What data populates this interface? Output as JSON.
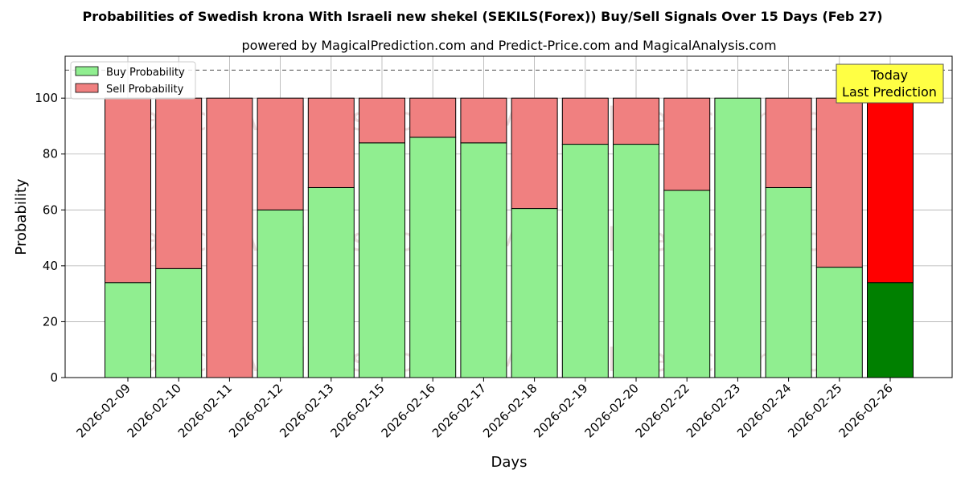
{
  "chart_data": {
    "type": "bar",
    "stacked": true,
    "title": "Probabilities of Swedish krona With Israeli new shekel (SEKILS(Forex)) Buy/Sell Signals Over 15 Days (Feb 27)",
    "subtitle": "powered by MagicalPrediction.com and Predict-Price.com and MagicalAnalysis.com",
    "xlabel": "Days",
    "ylabel": "Probability",
    "ylim": [
      0,
      115
    ],
    "yticks": [
      0,
      20,
      40,
      60,
      80,
      100
    ],
    "grid": true,
    "legend_position": "top-left",
    "reference_line": 110,
    "categories": [
      "2026-02-09",
      "2026-02-10",
      "2026-02-11",
      "2026-02-12",
      "2026-02-13",
      "2026-02-15",
      "2026-02-16",
      "2026-02-17",
      "2026-02-18",
      "2026-02-19",
      "2026-02-20",
      "2026-02-22",
      "2026-02-23",
      "2026-02-24",
      "2026-02-25",
      "2026-02-26"
    ],
    "series": [
      {
        "name": "Buy Probability",
        "color": "#90ee90",
        "values": [
          34,
          39,
          0,
          60,
          68,
          84,
          86,
          84,
          60.5,
          83.5,
          83.5,
          67,
          100,
          68,
          39.5,
          34
        ]
      },
      {
        "name": "Sell Probability",
        "color": "#f08080",
        "values": [
          66,
          61,
          100,
          40,
          32,
          16,
          14,
          16,
          39.5,
          16.5,
          16.5,
          33,
          0,
          32,
          60.5,
          66
        ]
      }
    ],
    "highlight": {
      "index": 15,
      "buy_color": "#008000",
      "sell_color": "#ff0000"
    },
    "annotation": {
      "line1": "Today",
      "line2": "Last Prediction",
      "background": "#ffff44"
    },
    "watermarks": [
      "MagicalAnalysis.com",
      "MagicalPrediction.com"
    ]
  }
}
